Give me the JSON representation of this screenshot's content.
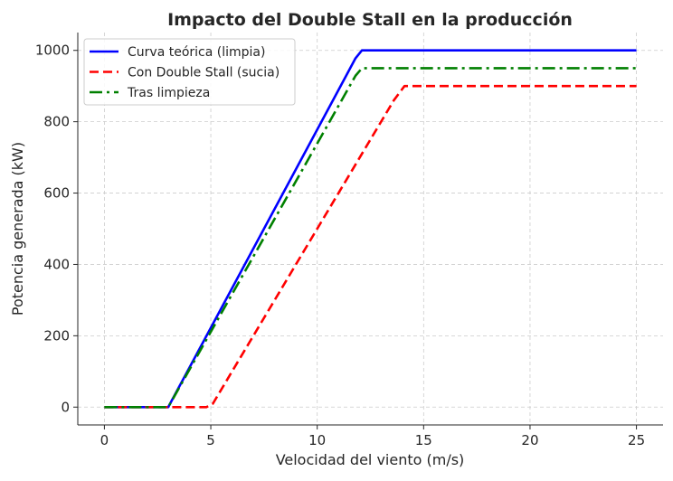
{
  "chart_data": {
    "type": "line",
    "title": "Impacto del Double Stall en la producción",
    "xlabel": "Velocidad del viento (m/s)",
    "ylabel": "Potencia generada (kW)",
    "xlim": [
      -1.25,
      26.25
    ],
    "ylim": [
      -50,
      1050
    ],
    "xticks": [
      0,
      5,
      10,
      15,
      20,
      25
    ],
    "yticks": [
      0,
      200,
      400,
      600,
      800,
      1000
    ],
    "grid": true,
    "legend_position": "top-left",
    "series": [
      {
        "name": "Curva teórica (limpia)",
        "color": "#0000ff",
        "style": "solid",
        "x": [
          0,
          3,
          11.8,
          12.1,
          25
        ],
        "y": [
          0,
          0,
          978,
          1000,
          1000
        ]
      },
      {
        "name": "Con Double Stall (sucia)",
        "color": "#ff0000",
        "style": "dashed",
        "x": [
          0,
          4.8,
          5.1,
          13.6,
          14.1,
          25
        ],
        "y": [
          0,
          0,
          10,
          860,
          900,
          900
        ]
      },
      {
        "name": "Tras limpieza",
        "color": "#008000",
        "style": "dashdot",
        "x": [
          0,
          3,
          11.8,
          12.1,
          25
        ],
        "y": [
          0,
          0,
          929,
          950,
          950
        ]
      }
    ]
  }
}
